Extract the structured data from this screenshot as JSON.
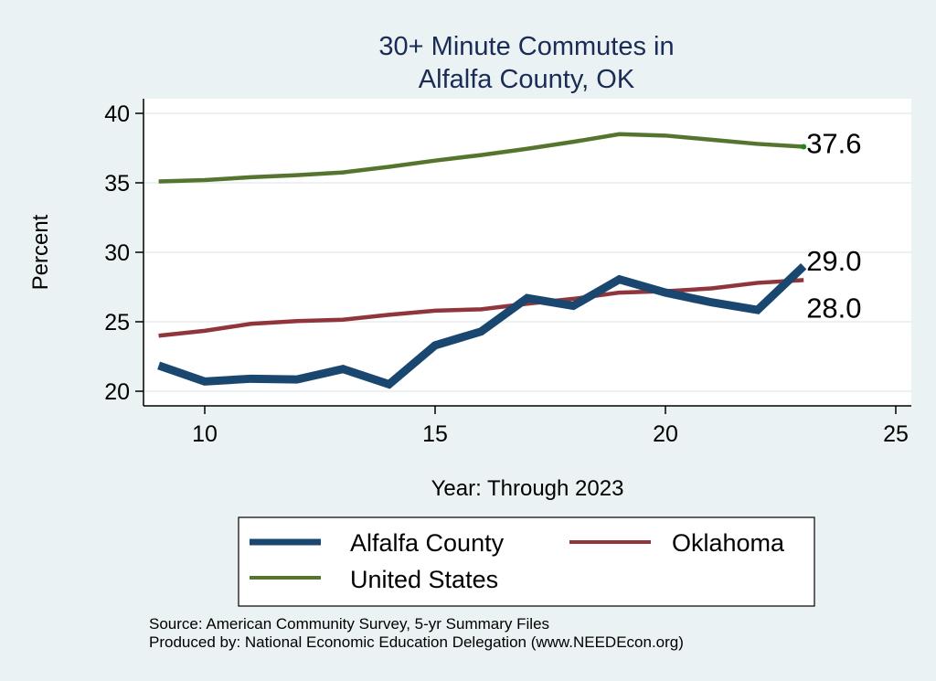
{
  "chart_data": {
    "type": "line",
    "title": "30+ Minute Commutes in",
    "subtitle": "Alfalfa County, OK",
    "xlabel": "Year: Through 2023",
    "ylabel": "Percent",
    "xlim": [
      9,
      25
    ],
    "ylim": [
      20,
      40
    ],
    "xticks": [
      10,
      15,
      20,
      25
    ],
    "yticks": [
      20,
      25,
      30,
      35,
      40
    ],
    "x": [
      9,
      10,
      11,
      12,
      13,
      14,
      15,
      16,
      17,
      18,
      19,
      20,
      21,
      22,
      23
    ],
    "series": [
      {
        "name": "Alfalfa County",
        "color": "#1a476f",
        "values": [
          21.85,
          20.7,
          20.9,
          20.85,
          21.6,
          20.5,
          23.3,
          24.3,
          26.7,
          26.15,
          28.05,
          27.1,
          26.4,
          25.85,
          29.0
        ],
        "end_label": "29.0"
      },
      {
        "name": "Oklahoma",
        "color": "#90353b",
        "values": [
          24.0,
          24.35,
          24.85,
          25.05,
          25.15,
          25.5,
          25.8,
          25.9,
          26.3,
          26.65,
          27.1,
          27.2,
          27.4,
          27.8,
          28.0
        ],
        "end_label": "28.0"
      },
      {
        "name": "United States",
        "color": "#55752f",
        "values": [
          35.1,
          35.2,
          35.4,
          35.55,
          35.75,
          36.15,
          36.6,
          37.0,
          37.45,
          37.95,
          38.5,
          38.4,
          38.1,
          37.8,
          37.6
        ],
        "end_label": "37.6"
      }
    ],
    "legend": {
      "placement": "bottom",
      "entries": [
        "Alfalfa County",
        "Oklahoma",
        "United States"
      ]
    },
    "grid": true,
    "notes": [
      "Source: American Community Survey, 5-yr Summary Files",
      "Produced by: National Economic Education Delegation (www.NEEDEcon.org)"
    ]
  }
}
